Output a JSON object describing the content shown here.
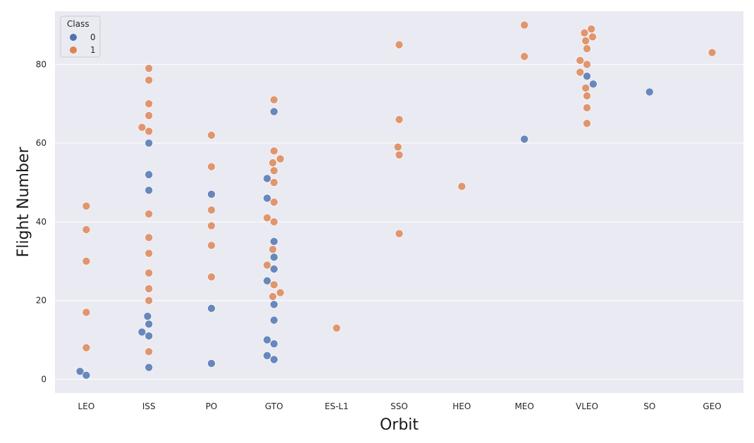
{
  "chart_data": {
    "type": "scatter",
    "style": "swarm",
    "categories": [
      "LEO",
      "ISS",
      "PO",
      "GTO",
      "ES-L1",
      "SSO",
      "HEO",
      "MEO",
      "VLEO",
      "SO",
      "GEO"
    ],
    "xlabel": "Orbit",
    "ylabel": "Flight Number",
    "ylim": [
      -3.5,
      93.5
    ],
    "yticks": [
      0,
      20,
      40,
      60,
      80
    ],
    "grid": true,
    "background": "#eaeaf2",
    "legend": {
      "title": "Class",
      "placement": "top-left",
      "entries": [
        {
          "label": "0",
          "color": "#4c72b0"
        },
        {
          "label": "1",
          "color": "#dd8452"
        }
      ]
    },
    "series": [
      {
        "class": 0,
        "color": "#4c72b0",
        "points": [
          {
            "orbit": "LEO",
            "y": 2,
            "offset": -0.1
          },
          {
            "orbit": "LEO",
            "y": 1,
            "offset": 0
          },
          {
            "orbit": "ISS",
            "y": 60,
            "offset": 0
          },
          {
            "orbit": "ISS",
            "y": 52,
            "offset": 0
          },
          {
            "orbit": "ISS",
            "y": 48,
            "offset": 0
          },
          {
            "orbit": "ISS",
            "y": 16,
            "offset": -0.02
          },
          {
            "orbit": "ISS",
            "y": 14,
            "offset": 0
          },
          {
            "orbit": "ISS",
            "y": 12,
            "offset": -0.11
          },
          {
            "orbit": "ISS",
            "y": 11,
            "offset": 0
          },
          {
            "orbit": "ISS",
            "y": 3,
            "offset": 0
          },
          {
            "orbit": "PO",
            "y": 47,
            "offset": 0
          },
          {
            "orbit": "PO",
            "y": 18,
            "offset": 0
          },
          {
            "orbit": "PO",
            "y": 4,
            "offset": 0
          },
          {
            "orbit": "GTO",
            "y": 68,
            "offset": 0
          },
          {
            "orbit": "GTO",
            "y": 51,
            "offset": -0.11
          },
          {
            "orbit": "GTO",
            "y": 46,
            "offset": -0.11
          },
          {
            "orbit": "GTO",
            "y": 35,
            "offset": 0
          },
          {
            "orbit": "GTO",
            "y": 31,
            "offset": 0
          },
          {
            "orbit": "GTO",
            "y": 28,
            "offset": 0
          },
          {
            "orbit": "GTO",
            "y": 25,
            "offset": -0.11
          },
          {
            "orbit": "GTO",
            "y": 19,
            "offset": 0
          },
          {
            "orbit": "GTO",
            "y": 15,
            "offset": 0
          },
          {
            "orbit": "GTO",
            "y": 10,
            "offset": -0.11
          },
          {
            "orbit": "GTO",
            "y": 9,
            "offset": 0
          },
          {
            "orbit": "GTO",
            "y": 6,
            "offset": -0.11
          },
          {
            "orbit": "GTO",
            "y": 5,
            "offset": 0
          },
          {
            "orbit": "MEO",
            "y": 61,
            "offset": 0
          },
          {
            "orbit": "VLEO",
            "y": 77,
            "offset": 0
          },
          {
            "orbit": "VLEO",
            "y": 75,
            "offset": 0.1
          },
          {
            "orbit": "SO",
            "y": 73,
            "offset": 0
          }
        ]
      },
      {
        "class": 1,
        "color": "#dd8452",
        "points": [
          {
            "orbit": "LEO",
            "y": 44,
            "offset": 0
          },
          {
            "orbit": "LEO",
            "y": 38,
            "offset": 0
          },
          {
            "orbit": "LEO",
            "y": 30,
            "offset": 0
          },
          {
            "orbit": "LEO",
            "y": 17,
            "offset": 0
          },
          {
            "orbit": "LEO",
            "y": 8,
            "offset": 0
          },
          {
            "orbit": "ISS",
            "y": 79,
            "offset": 0
          },
          {
            "orbit": "ISS",
            "y": 76,
            "offset": 0
          },
          {
            "orbit": "ISS",
            "y": 70,
            "offset": 0
          },
          {
            "orbit": "ISS",
            "y": 67,
            "offset": 0
          },
          {
            "orbit": "ISS",
            "y": 64,
            "offset": -0.11
          },
          {
            "orbit": "ISS",
            "y": 63,
            "offset": 0
          },
          {
            "orbit": "ISS",
            "y": 42,
            "offset": 0
          },
          {
            "orbit": "ISS",
            "y": 36,
            "offset": 0
          },
          {
            "orbit": "ISS",
            "y": 32,
            "offset": 0
          },
          {
            "orbit": "ISS",
            "y": 27,
            "offset": 0
          },
          {
            "orbit": "ISS",
            "y": 23,
            "offset": 0
          },
          {
            "orbit": "ISS",
            "y": 20,
            "offset": 0
          },
          {
            "orbit": "ISS",
            "y": 7,
            "offset": 0
          },
          {
            "orbit": "PO",
            "y": 62,
            "offset": 0
          },
          {
            "orbit": "PO",
            "y": 54,
            "offset": 0
          },
          {
            "orbit": "PO",
            "y": 43,
            "offset": 0
          },
          {
            "orbit": "PO",
            "y": 39,
            "offset": 0
          },
          {
            "orbit": "PO",
            "y": 34,
            "offset": 0
          },
          {
            "orbit": "PO",
            "y": 26,
            "offset": 0
          },
          {
            "orbit": "GTO",
            "y": 71,
            "offset": 0
          },
          {
            "orbit": "GTO",
            "y": 58,
            "offset": 0
          },
          {
            "orbit": "GTO",
            "y": 56,
            "offset": 0.1
          },
          {
            "orbit": "GTO",
            "y": 55,
            "offset": -0.02
          },
          {
            "orbit": "GTO",
            "y": 53,
            "offset": 0
          },
          {
            "orbit": "GTO",
            "y": 50,
            "offset": 0
          },
          {
            "orbit": "GTO",
            "y": 45,
            "offset": 0
          },
          {
            "orbit": "GTO",
            "y": 41,
            "offset": -0.11
          },
          {
            "orbit": "GTO",
            "y": 40,
            "offset": 0
          },
          {
            "orbit": "GTO",
            "y": 33,
            "offset": -0.02
          },
          {
            "orbit": "GTO",
            "y": 29,
            "offset": -0.11
          },
          {
            "orbit": "GTO",
            "y": 24,
            "offset": 0
          },
          {
            "orbit": "GTO",
            "y": 22,
            "offset": 0.1
          },
          {
            "orbit": "GTO",
            "y": 21,
            "offset": -0.02
          },
          {
            "orbit": "ES-L1",
            "y": 13,
            "offset": 0
          },
          {
            "orbit": "SSO",
            "y": 85,
            "offset": 0
          },
          {
            "orbit": "SSO",
            "y": 66,
            "offset": 0
          },
          {
            "orbit": "SSO",
            "y": 59,
            "offset": -0.02
          },
          {
            "orbit": "SSO",
            "y": 57,
            "offset": 0
          },
          {
            "orbit": "SSO",
            "y": 37,
            "offset": 0
          },
          {
            "orbit": "HEO",
            "y": 49,
            "offset": 0
          },
          {
            "orbit": "MEO",
            "y": 90,
            "offset": 0
          },
          {
            "orbit": "MEO",
            "y": 82,
            "offset": 0
          },
          {
            "orbit": "VLEO",
            "y": 89,
            "offset": 0.07
          },
          {
            "orbit": "VLEO",
            "y": 88,
            "offset": -0.04
          },
          {
            "orbit": "VLEO",
            "y": 87,
            "offset": 0.09
          },
          {
            "orbit": "VLEO",
            "y": 86,
            "offset": -0.02
          },
          {
            "orbit": "VLEO",
            "y": 84,
            "offset": 0
          },
          {
            "orbit": "VLEO",
            "y": 81,
            "offset": -0.11
          },
          {
            "orbit": "VLEO",
            "y": 80,
            "offset": 0
          },
          {
            "orbit": "VLEO",
            "y": 78,
            "offset": -0.11
          },
          {
            "orbit": "VLEO",
            "y": 74,
            "offset": -0.02
          },
          {
            "orbit": "VLEO",
            "y": 72,
            "offset": 0
          },
          {
            "orbit": "VLEO",
            "y": 69,
            "offset": 0
          },
          {
            "orbit": "VLEO",
            "y": 65,
            "offset": 0
          },
          {
            "orbit": "GEO",
            "y": 83,
            "offset": 0
          }
        ]
      }
    ]
  }
}
